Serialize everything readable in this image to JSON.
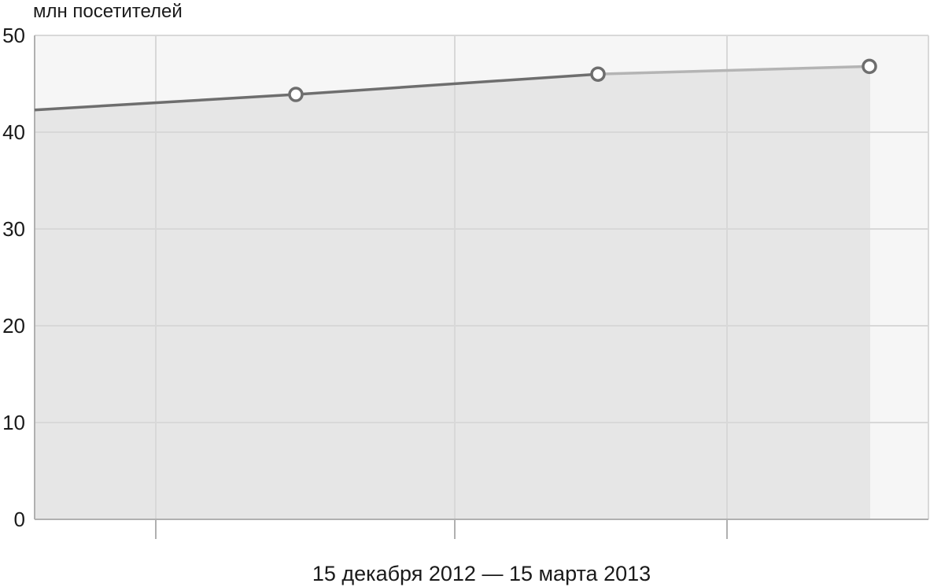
{
  "chart_data": {
    "type": "area",
    "title": "",
    "ylabel": "млн посетителей",
    "xlabel": "15 декабря 2012 — 15 марта 2013",
    "ylim": [
      0,
      50
    ],
    "yticks": [
      0,
      10,
      20,
      30,
      40,
      50
    ],
    "grid": true,
    "series": [
      {
        "points": [
          {
            "x": 0,
            "y": 42.3
          },
          {
            "x": 1,
            "y": 43.9
          },
          {
            "x": 2,
            "y": 46.0
          },
          {
            "x": 3,
            "y": 46.8
          }
        ],
        "markers": [
          1,
          2,
          3
        ],
        "projected_from_index": 2
      }
    ],
    "colors": {
      "plot_bg": "#f6f6f6",
      "area_fill": "#e6e6e6",
      "grid": "#d8d8d8",
      "axis": "#b0b0b0",
      "line": "#6e6e6e",
      "line_projected": "#b4b4b4",
      "marker_stroke": "#6e6e6e",
      "marker_fill": "#ffffff"
    }
  }
}
